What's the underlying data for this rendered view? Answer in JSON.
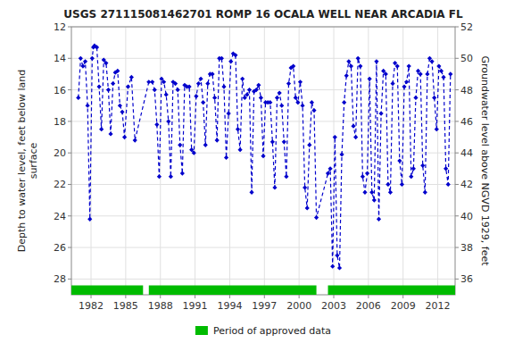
{
  "chart_data": {
    "type": "line",
    "title": "USGS 271115081462701 ROMP 16 OCALA WELL NEAR ARCADIA FL",
    "y_label": "Depth to water level, feet below land\nsurface",
    "y2_label": "Groundwater level above NGVD 1929, feet",
    "x": [
      1980.9,
      1981.1,
      1981.3,
      1981.5,
      1981.7,
      1981.9,
      1982.1,
      1982.2,
      1982.3,
      1982.5,
      1982.7,
      1982.9,
      1983.1,
      1983.3,
      1983.5,
      1983.7,
      1983.9,
      1984.1,
      1984.3,
      1984.5,
      1984.7,
      1984.9,
      1985.2,
      1985.5,
      1985.8,
      1987.0,
      1987.3,
      1987.5,
      1987.7,
      1987.9,
      1988.1,
      1988.3,
      1988.5,
      1988.7,
      1988.9,
      1989.1,
      1989.3,
      1989.5,
      1989.7,
      1989.9,
      1990.1,
      1990.3,
      1990.5,
      1990.7,
      1990.9,
      1991.1,
      1991.3,
      1991.5,
      1991.7,
      1991.9,
      1992.1,
      1992.3,
      1992.5,
      1992.7,
      1992.9,
      1993.1,
      1993.3,
      1993.5,
      1993.7,
      1993.9,
      1994.1,
      1994.3,
      1994.5,
      1994.7,
      1994.9,
      1995.1,
      1995.3,
      1995.5,
      1995.7,
      1995.9,
      1996.1,
      1996.3,
      1996.5,
      1996.7,
      1996.9,
      1997.1,
      1997.3,
      1997.5,
      1997.7,
      1997.9,
      1998.1,
      1998.3,
      1998.5,
      1998.7,
      1998.9,
      1999.1,
      1999.3,
      1999.5,
      1999.7,
      1999.9,
      2000.1,
      2000.3,
      2000.5,
      2000.7,
      2000.9,
      2001.1,
      2001.3,
      2001.5,
      2002.5,
      2002.7,
      2002.9,
      2003.1,
      2003.3,
      2003.5,
      2003.7,
      2003.9,
      2004.1,
      2004.3,
      2004.5,
      2004.7,
      2004.9,
      2005.1,
      2005.3,
      2005.5,
      2005.7,
      2005.9,
      2006.1,
      2006.3,
      2006.5,
      2006.7,
      2006.9,
      2007.1,
      2007.3,
      2007.5,
      2007.7,
      2007.9,
      2008.1,
      2008.3,
      2008.5,
      2008.7,
      2008.9,
      2009.1,
      2009.3,
      2009.5,
      2009.7,
      2009.9,
      2010.1,
      2010.3,
      2010.5,
      2010.7,
      2010.9,
      2011.1,
      2011.3,
      2011.5,
      2011.7,
      2011.9,
      2012.1,
      2012.3,
      2012.5,
      2012.7,
      2012.9,
      2013.1
    ],
    "series": [
      {
        "color": "#0000cc",
        "marker": "diamond",
        "line_style": "dashed",
        "values": [
          16.5,
          14.0,
          14.5,
          14.2,
          17.0,
          24.2,
          14.0,
          13.3,
          13.2,
          13.3,
          15.8,
          18.5,
          14.1,
          14.3,
          16.0,
          18.8,
          15.6,
          14.9,
          14.8,
          17.0,
          17.4,
          19.0,
          15.8,
          15.2,
          19.2,
          15.5,
          15.5,
          16.0,
          18.2,
          21.5,
          15.3,
          15.5,
          16.3,
          18.0,
          21.5,
          15.5,
          15.6,
          16.0,
          19.5,
          21.3,
          15.7,
          15.8,
          15.8,
          19.8,
          20.0,
          16.4,
          15.6,
          15.3,
          16.8,
          19.5,
          15.6,
          15.0,
          15.0,
          16.5,
          19.2,
          14.0,
          14.0,
          15.8,
          20.3,
          17.5,
          14.2,
          13.7,
          13.8,
          18.5,
          19.8,
          15.3,
          16.5,
          16.3,
          16.0,
          22.5,
          16.1,
          16.0,
          15.7,
          16.5,
          20.2,
          16.8,
          16.8,
          16.8,
          19.3,
          22.2,
          16.5,
          16.2,
          17.0,
          19.3,
          21.5,
          15.6,
          14.6,
          14.5,
          16.5,
          16.8,
          15.5,
          17.0,
          22.2,
          23.5,
          19.5,
          16.8,
          17.3,
          24.1,
          21.3,
          21.0,
          27.2,
          19.0,
          26.5,
          27.3,
          20.1,
          16.8,
          15.1,
          14.2,
          14.5,
          18.3,
          19.0,
          14.0,
          14.5,
          21.5,
          22.5,
          21.3,
          15.3,
          22.5,
          23.0,
          14.2,
          24.2,
          17.5,
          14.8,
          15.0,
          22.0,
          22.5,
          15.6,
          14.3,
          14.5,
          20.5,
          22.0,
          15.8,
          15.5,
          14.5,
          21.5,
          21.0,
          16.5,
          14.8,
          15.0,
          20.8,
          22.5,
          15.0,
          14.0,
          14.2,
          16.5,
          18.5,
          14.5,
          14.8,
          15.2,
          21.0,
          22.0,
          15.0
        ]
      }
    ],
    "periods": {
      "name": "Period of approved data",
      "color": "#00bb00",
      "ranges": [
        [
          1980.3,
          1986.5
        ],
        [
          1987.0,
          2001.5
        ],
        [
          2002.5,
          2013.5
        ]
      ]
    },
    "xlim": [
      1980.3,
      2013.5
    ],
    "xticks": [
      1982,
      1985,
      1988,
      1991,
      1994,
      1997,
      2000,
      2003,
      2006,
      2009,
      2012
    ],
    "ylim": [
      29,
      12
    ],
    "yticks": [
      12,
      14,
      16,
      18,
      20,
      22,
      24,
      26,
      28
    ],
    "y2lim": [
      35,
      52
    ],
    "y2ticks": [
      52,
      50,
      48,
      46,
      44,
      42,
      40,
      38,
      36
    ],
    "grid": true,
    "legend": "bottom"
  }
}
